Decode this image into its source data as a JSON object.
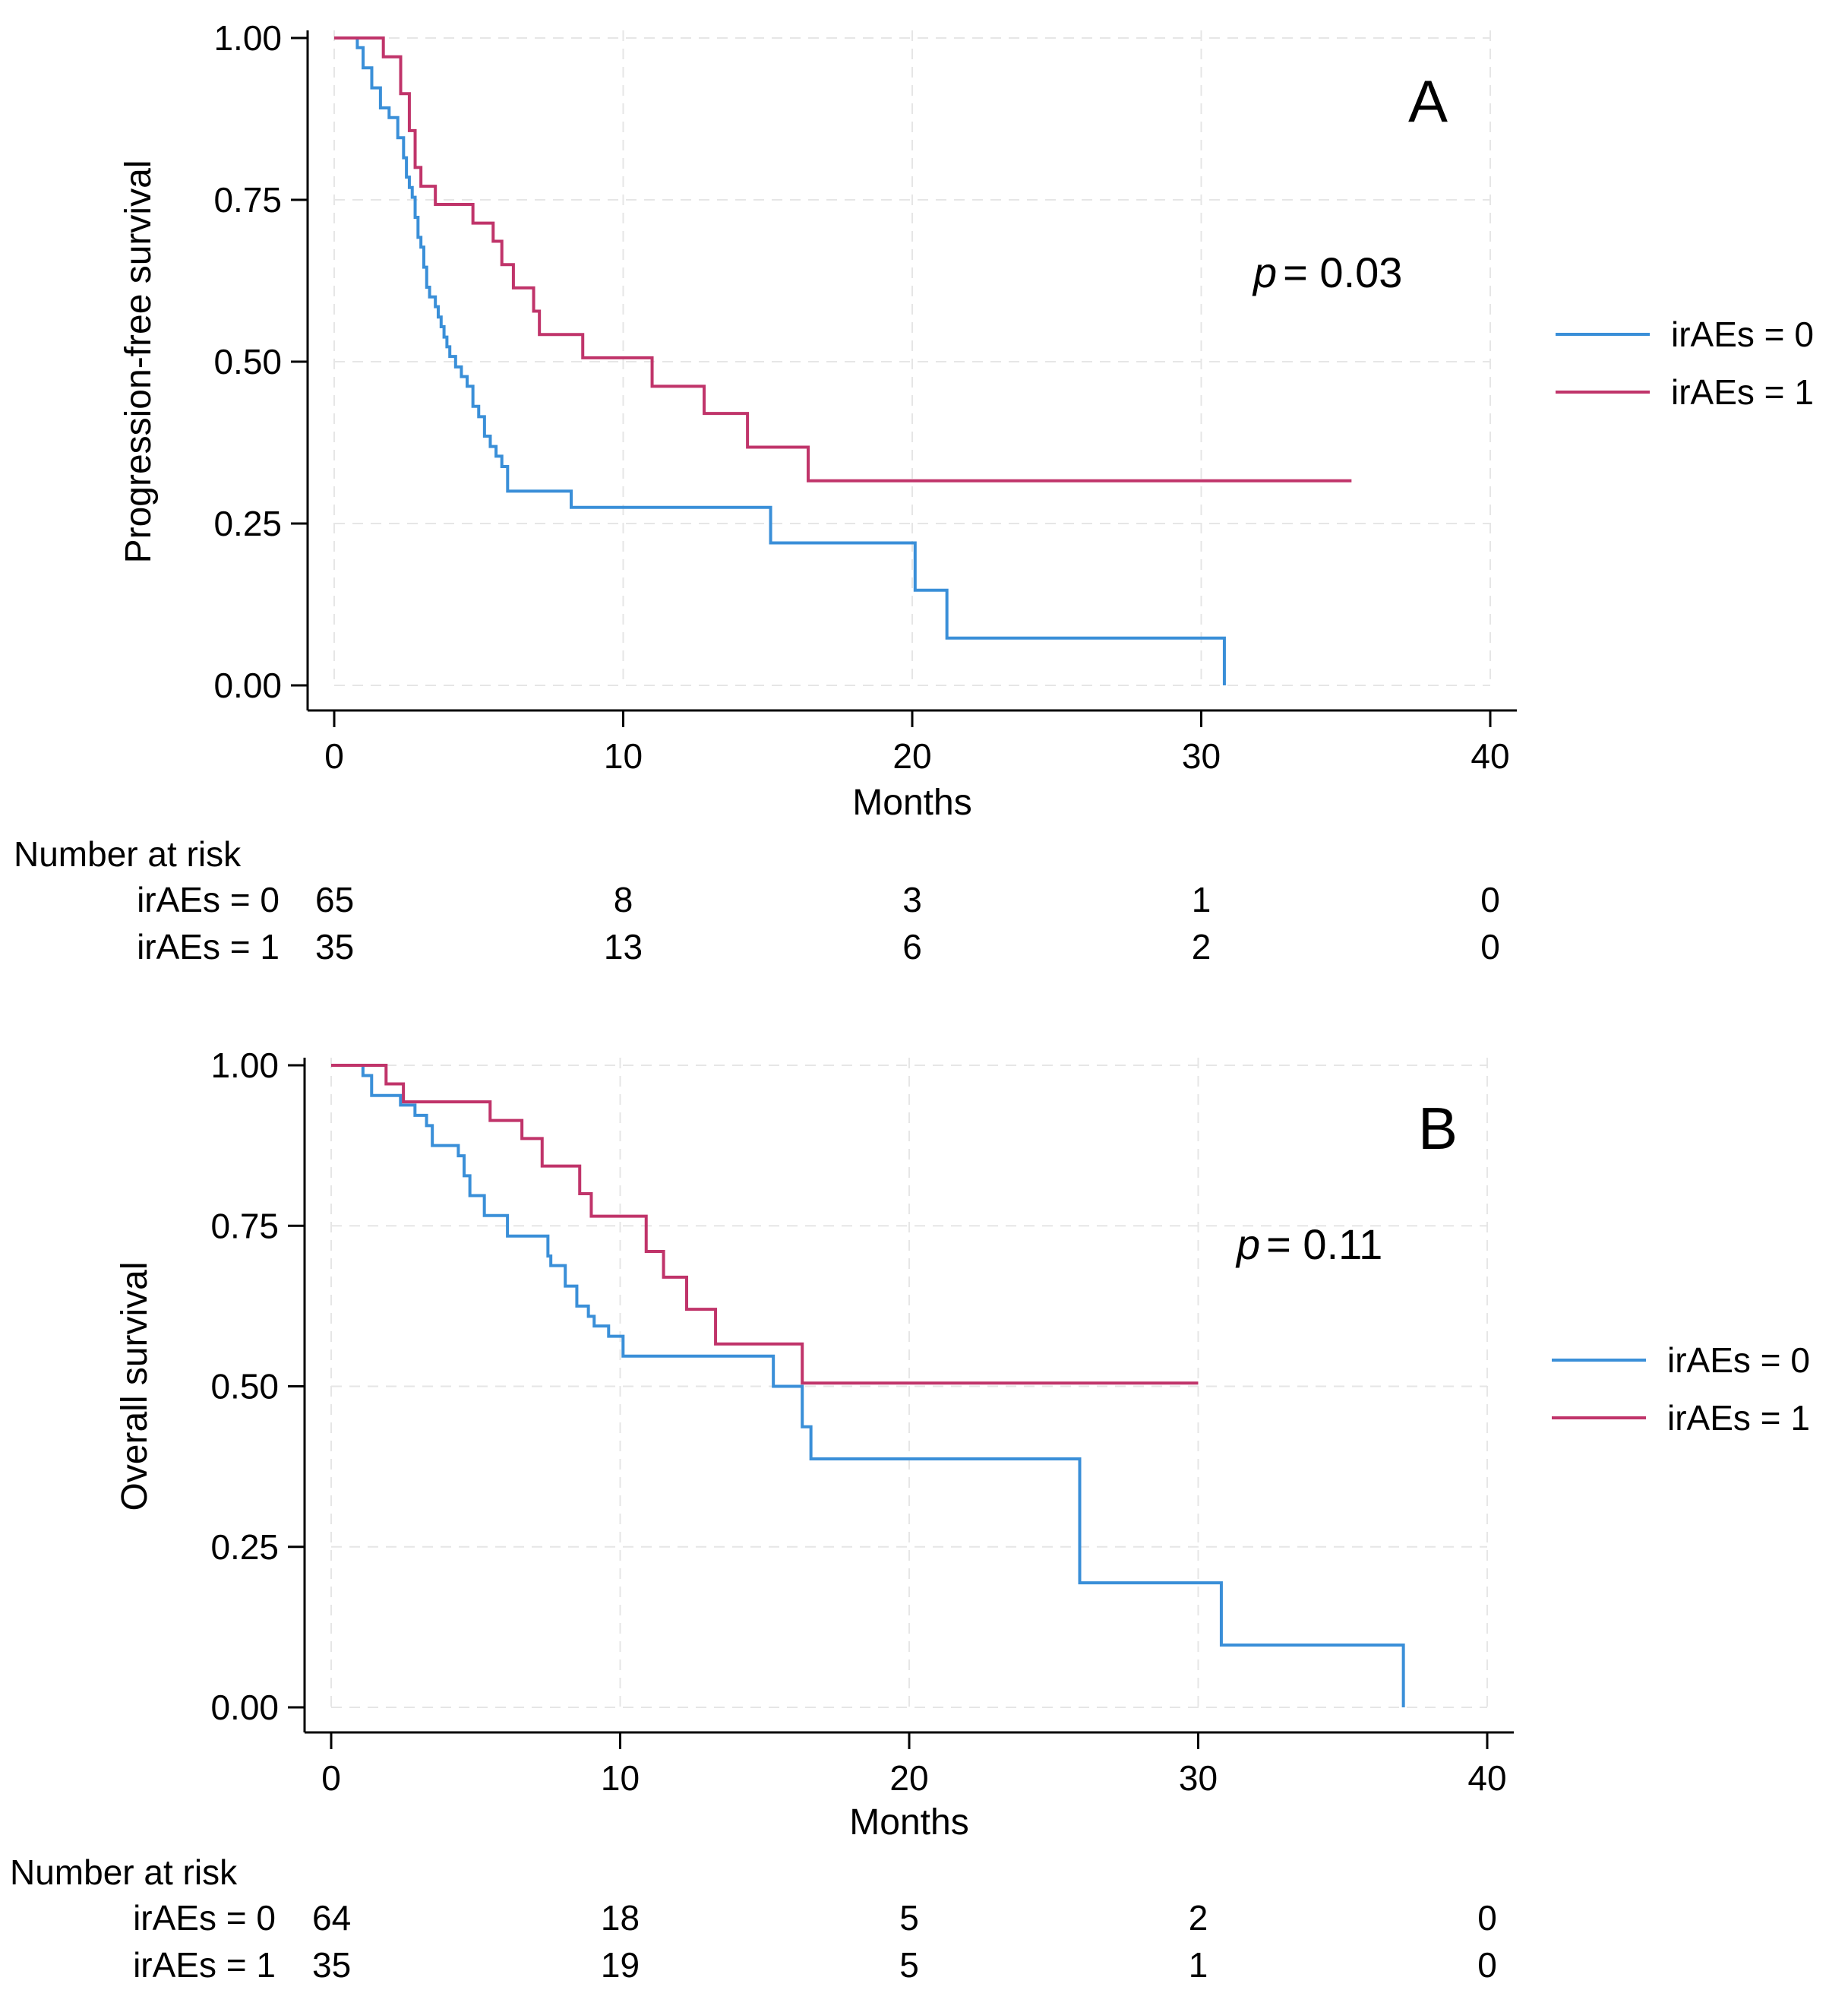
{
  "chart_data": [
    {
      "type": "line",
      "panel_label": "A",
      "p_value_symbol": "p",
      "p_value_text": "= 0.03",
      "xlabel": "Months",
      "ylabel": "Progression-free survival",
      "xlim": [
        0,
        40
      ],
      "ylim": [
        0,
        1
      ],
      "x_ticks": [
        "0",
        "10",
        "20",
        "30",
        "40"
      ],
      "y_ticks": [
        "0.00",
        "0.25",
        "0.50",
        "0.75",
        "1.00"
      ],
      "grid": true,
      "legend_position": "right",
      "series": [
        {
          "name": "irAEs = 0",
          "color": "#3a8fd8",
          "x": [
            0,
            0.8,
            1.0,
            1.3,
            1.6,
            1.9,
            2.2,
            2.4,
            2.5,
            2.6,
            2.7,
            2.8,
            2.9,
            3.0,
            3.1,
            3.2,
            3.3,
            3.5,
            3.6,
            3.7,
            3.8,
            3.9,
            4.0,
            4.2,
            4.4,
            4.6,
            4.8,
            5.0,
            5.2,
            5.4,
            5.6,
            5.8,
            6.0,
            8.2,
            15.1,
            20.1,
            21.2,
            30.8
          ],
          "y": [
            1.0,
            0.985,
            0.954,
            0.923,
            0.892,
            0.877,
            0.846,
            0.815,
            0.785,
            0.769,
            0.754,
            0.723,
            0.692,
            0.677,
            0.646,
            0.615,
            0.6,
            0.585,
            0.569,
            0.554,
            0.538,
            0.523,
            0.508,
            0.492,
            0.477,
            0.462,
            0.431,
            0.415,
            0.385,
            0.369,
            0.354,
            0.338,
            0.3,
            0.275,
            0.22,
            0.147,
            0.073,
            0.0
          ]
        },
        {
          "name": "irAEs = 1",
          "color": "#c0346a",
          "x": [
            0,
            1.7,
            2.3,
            2.6,
            2.8,
            3.0,
            3.5,
            4.8,
            5.5,
            5.8,
            6.2,
            6.9,
            7.1,
            7.3,
            8.6,
            11.0,
            12.8,
            14.3,
            16.4,
            35.2
          ],
          "y": [
            1.0,
            0.971,
            0.914,
            0.857,
            0.8,
            0.771,
            0.743,
            0.714,
            0.686,
            0.65,
            0.614,
            0.578,
            0.542,
            0.542,
            0.506,
            0.462,
            0.42,
            0.368,
            0.316,
            0.316
          ]
        }
      ],
      "risk_table": {
        "title": "Number at risk",
        "times": [
          "0",
          "10",
          "20",
          "30",
          "40"
        ],
        "rows": [
          {
            "label": "irAEs = 0",
            "values": [
              "65",
              "8",
              "3",
              "1",
              "0"
            ]
          },
          {
            "label": "irAEs = 1",
            "values": [
              "35",
              "13",
              "6",
              "2",
              "0"
            ]
          }
        ]
      }
    },
    {
      "type": "line",
      "panel_label": "B",
      "p_value_symbol": "p",
      "p_value_text": "= 0.11",
      "xlabel": "Months",
      "ylabel": "Overall survival",
      "xlim": [
        0,
        40
      ],
      "ylim": [
        0,
        1
      ],
      "x_ticks": [
        "0",
        "10",
        "20",
        "30",
        "40"
      ],
      "y_ticks": [
        "0.00",
        "0.25",
        "0.50",
        "0.75",
        "1.00"
      ],
      "grid": true,
      "legend_position": "right",
      "series": [
        {
          "name": "irAEs = 0",
          "color": "#3a8fd8",
          "x": [
            0,
            1.1,
            1.4,
            2.4,
            2.9,
            3.3,
            3.5,
            4.4,
            4.6,
            4.8,
            5.3,
            6.1,
            7.5,
            7.6,
            8.1,
            8.5,
            8.9,
            9.1,
            9.6,
            10.1,
            15.3,
            16.3,
            16.6,
            25.9,
            30.8,
            37.1
          ],
          "y": [
            1.0,
            0.984,
            0.953,
            0.938,
            0.922,
            0.906,
            0.875,
            0.859,
            0.828,
            0.797,
            0.766,
            0.734,
            0.703,
            0.688,
            0.656,
            0.625,
            0.609,
            0.594,
            0.578,
            0.547,
            0.5,
            0.437,
            0.387,
            0.194,
            0.097,
            0.0
          ]
        },
        {
          "name": "irAEs = 1",
          "color": "#c0346a",
          "x": [
            0,
            1.9,
            2.5,
            5.5,
            6.6,
            7.3,
            8.6,
            9.0,
            10.9,
            11.5,
            12.3,
            13.3,
            16.3,
            30.0
          ],
          "y": [
            1.0,
            0.971,
            0.943,
            0.914,
            0.886,
            0.843,
            0.8,
            0.765,
            0.71,
            0.67,
            0.62,
            0.566,
            0.505,
            0.505
          ]
        }
      ],
      "risk_table": {
        "title": "Number at risk",
        "times": [
          "0",
          "10",
          "20",
          "30",
          "40"
        ],
        "rows": [
          {
            "label": "irAEs = 0",
            "values": [
              "64",
              "18",
              "5",
              "2",
              "0"
            ]
          },
          {
            "label": "irAEs = 1",
            "values": [
              "35",
              "19",
              "5",
              "1",
              "0"
            ]
          }
        ]
      }
    }
  ]
}
